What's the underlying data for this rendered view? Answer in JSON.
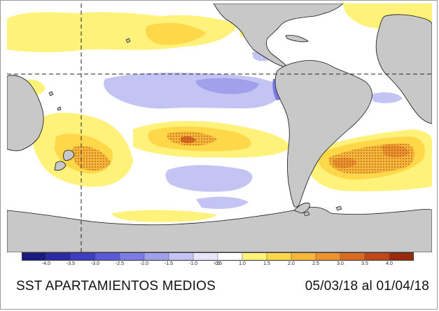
{
  "map": {
    "caption_title": "SST APARTAMIENTOS MEDIOS",
    "caption_period": "05/03/18 al 01/04/18",
    "colors": {
      "land": "#c8c8c8",
      "coast": "#111111",
      "ocean": "#ffffff"
    }
  },
  "colorbar": {
    "labels": [
      "-4.0",
      "-3.5",
      "-3.0",
      "-2.5",
      "-2.0",
      "-1.5",
      "-1.0",
      "-0.5",
      ".5",
      "1.0",
      "1.5",
      "2.0",
      "2.5",
      "3.0",
      "3.5",
      "4.0"
    ],
    "colors": [
      "#1a1a80",
      "#2a2aa6",
      "#3d3dc2",
      "#5a5ad8",
      "#7c7ce4",
      "#a0a0ec",
      "#c4c4f4",
      "#e6e6fc",
      "#ffffff",
      "#fff27a",
      "#ffd84a",
      "#f9b73a",
      "#ec922e",
      "#d96a22",
      "#c04818",
      "#9a2a0e"
    ]
  }
}
